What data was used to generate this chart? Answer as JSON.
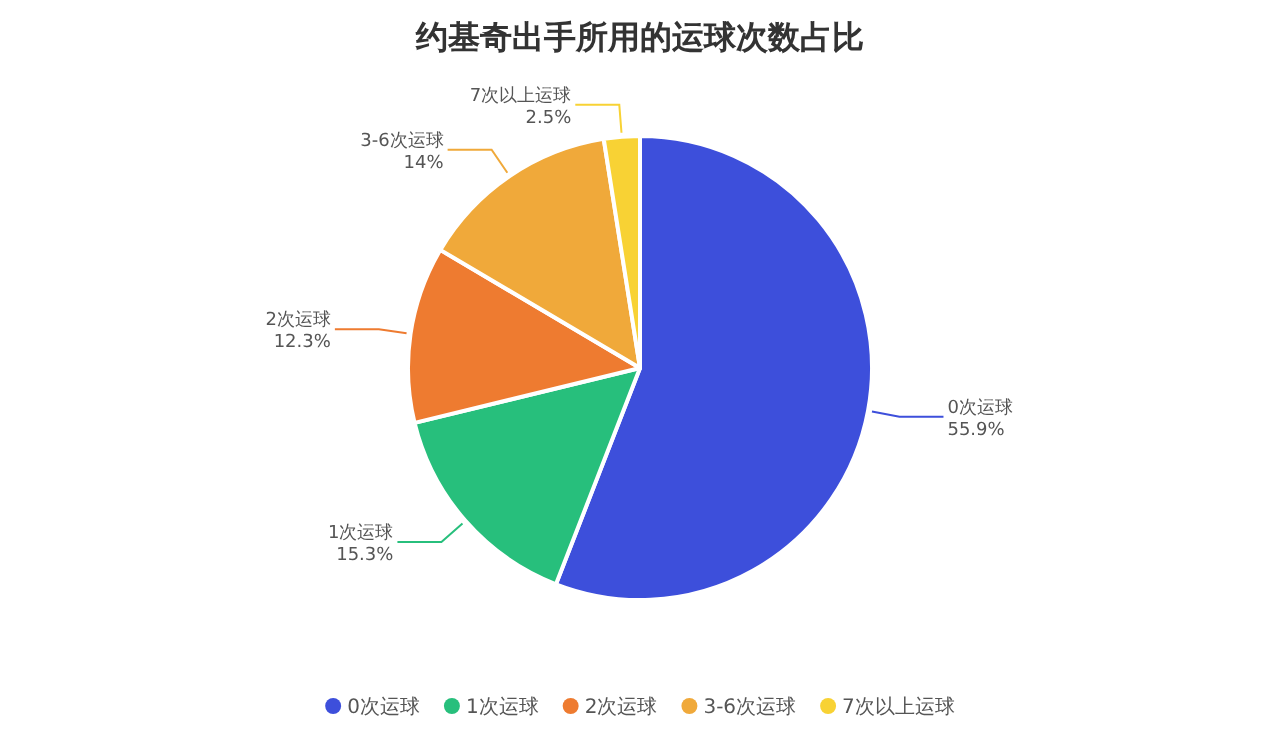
{
  "chart_data": {
    "type": "pie",
    "title": "约基奇出手所用的运球次数占比",
    "categories": [
      "0次运球",
      "1次运球",
      "2次运球",
      "3-6次运球",
      "7次以上运球"
    ],
    "values": [
      55.9,
      15.3,
      12.3,
      14,
      2.5
    ],
    "value_labels": [
      "55.9%",
      "15.3%",
      "12.3%",
      "14%",
      "2.5%"
    ],
    "colors": [
      "#3d4fdb",
      "#27bf7c",
      "#ee7b30",
      "#f0a93a",
      "#f8d234"
    ],
    "legend": "bottom"
  }
}
